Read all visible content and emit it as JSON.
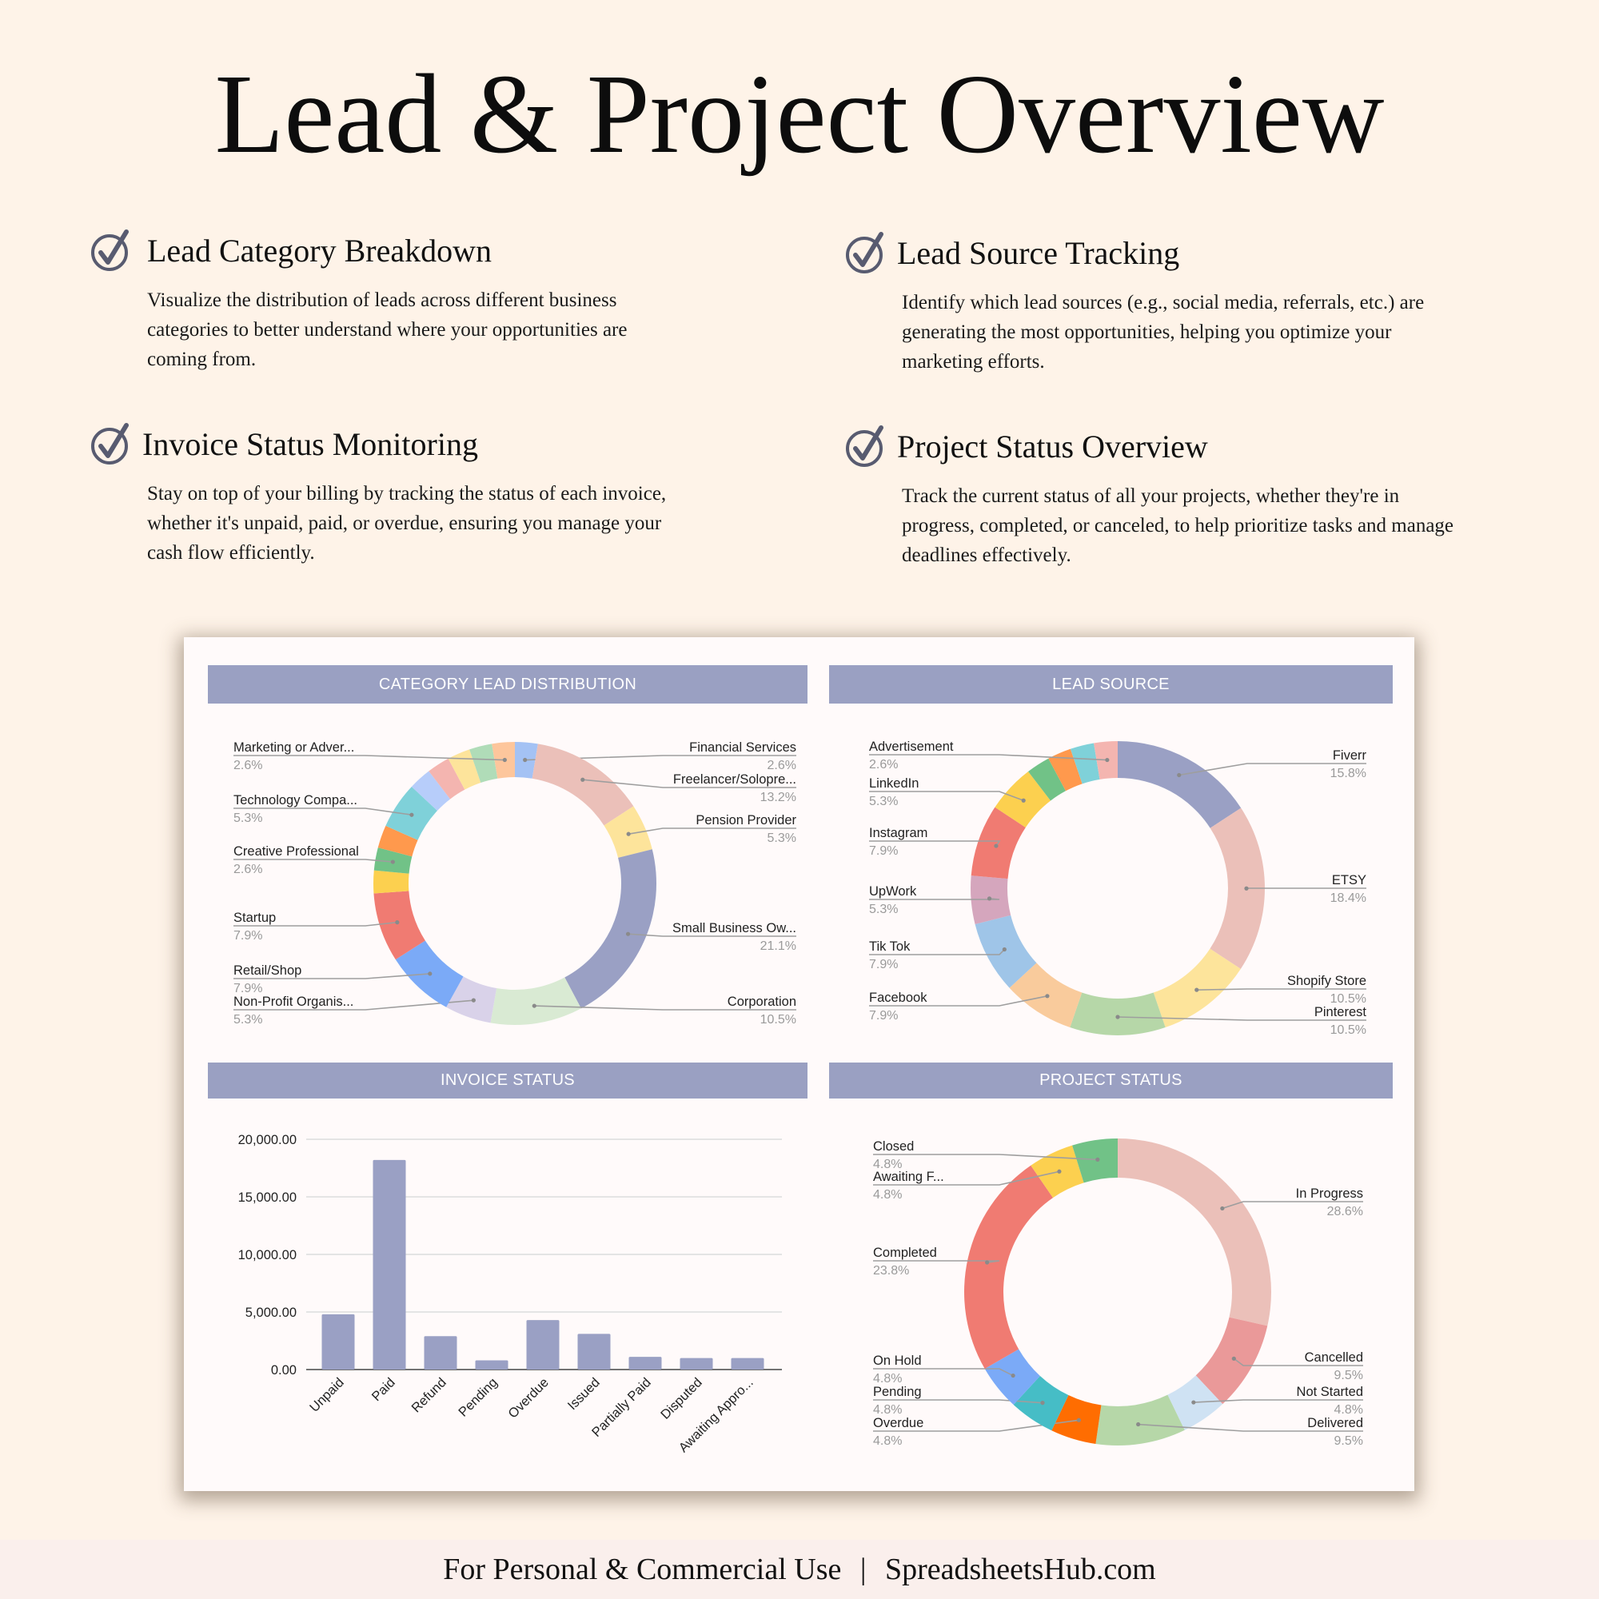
{
  "title": "Lead & Project Overview",
  "features": [
    {
      "heading": "Lead Category Breakdown",
      "icon": "check-circle-icon",
      "lines": [
        "Visualize the distribution of leads across different business",
        "categories to better understand where your opportunities are",
        "coming from."
      ]
    },
    {
      "heading": "Lead Source Tracking",
      "icon": "check-circle-icon",
      "lines": [
        "Identify which lead sources (e.g., social media, referrals, etc.) are",
        "generating the most opportunities, helping you optimize your",
        "marketing efforts."
      ]
    },
    {
      "heading": "Invoice Status Monitoring",
      "icon": "check-circle-icon",
      "lines": [
        "Stay on top of your billing by tracking the status of each invoice,",
        "whether it's unpaid, paid, or overdue, ensuring you manage your",
        "cash flow efficiently."
      ]
    },
    {
      "heading": "Project Status Overview",
      "icon": "check-circle-icon",
      "lines": [
        "Track the current status of all your projects, whether they're in",
        "progress, completed, or canceled, to help prioritize tasks and manage",
        "deadlines effectively."
      ]
    }
  ],
  "colors": {
    "header_bar": "#9aa0c2",
    "bar": "#9aa0c4",
    "icon": "#585b70",
    "background": "#fef3e8"
  },
  "chart_data": [
    {
      "type": "pie",
      "donut": true,
      "title": "CATEGORY LEAD DISTRIBUTION",
      "slices": [
        {
          "name": "Financial Services",
          "percent": 2.6,
          "color": "#a4c2f4"
        },
        {
          "name": "Freelancer/Solopre...",
          "percent": 13.2,
          "color": "#ebc0b9"
        },
        {
          "name": "Pension Provider",
          "percent": 5.3,
          "color": "#fde49b"
        },
        {
          "name": "Small Business Ow...",
          "percent": 21.1,
          "color": "#9aa0c4"
        },
        {
          "name": "Corporation",
          "percent": 10.5,
          "color": "#d9ead3"
        },
        {
          "name": "Non-Profit Organis...",
          "percent": 5.3,
          "color": "#d9d2e9"
        },
        {
          "name": "Retail/Shop",
          "percent": 7.9,
          "color": "#7baaf7"
        },
        {
          "name": "Startup",
          "percent": 7.9,
          "color": "#f07b72"
        },
        {
          "name": "",
          "percent": 2.6,
          "color": "#fcd04f"
        },
        {
          "name": "Creative Professional",
          "percent": 2.6,
          "color": "#71c287"
        },
        {
          "name": "",
          "percent": 2.6,
          "color": "#ff994d"
        },
        {
          "name": "Technology Compa...",
          "percent": 5.3,
          "color": "#7fd1d9"
        },
        {
          "name": "",
          "percent": 2.6,
          "color": "#b7cdfa"
        },
        {
          "name": "",
          "percent": 2.6,
          "color": "#f4b5b0"
        },
        {
          "name": "",
          "percent": 2.6,
          "color": "#fde49b"
        },
        {
          "name": "",
          "percent": 2.6,
          "color": "#b0dcb8"
        },
        {
          "name": "Marketing or Adver...",
          "percent": 2.6,
          "color": "#fdc69c"
        }
      ]
    },
    {
      "type": "pie",
      "donut": true,
      "title": "LEAD SOURCE",
      "slices": [
        {
          "name": "Fiverr",
          "percent": 15.8,
          "color": "#9aa0c4"
        },
        {
          "name": "ETSY",
          "percent": 18.4,
          "color": "#ebc0b9"
        },
        {
          "name": "Shopify Store",
          "percent": 10.5,
          "color": "#fde49b"
        },
        {
          "name": "Pinterest",
          "percent": 10.5,
          "color": "#b6d7a8"
        },
        {
          "name": "Facebook",
          "percent": 7.9,
          "color": "#f9cb9c"
        },
        {
          "name": "Tik Tok",
          "percent": 7.9,
          "color": "#9fc5e8"
        },
        {
          "name": "UpWork",
          "percent": 5.3,
          "color": "#d5a6bd"
        },
        {
          "name": "Instagram",
          "percent": 7.9,
          "color": "#f07b72"
        },
        {
          "name": "LinkedIn",
          "percent": 5.3,
          "color": "#fcd04f"
        },
        {
          "name": "",
          "percent": 2.6,
          "color": "#71c287"
        },
        {
          "name": "",
          "percent": 2.6,
          "color": "#ff994d"
        },
        {
          "name": "",
          "percent": 2.6,
          "color": "#7fd1d9"
        },
        {
          "name": "Advertisement",
          "percent": 2.6,
          "color": "#f4b5b0"
        }
      ]
    },
    {
      "type": "bar",
      "title": "INVOICE STATUS",
      "categories": [
        "Unpaid",
        "Paid",
        "Refund",
        "Pending",
        "Overdue",
        "Issued",
        "Partially Paid",
        "Disputed",
        "Awaiting Appro..."
      ],
      "values": [
        4800,
        18200,
        2900,
        800,
        4300,
        3100,
        1100,
        1000,
        1000
      ],
      "ylim": [
        0,
        20000
      ],
      "yticks": [
        "0.00",
        "5,000.00",
        "10,000.00",
        "15,000.00",
        "20,000.00"
      ],
      "grid": true,
      "xlabel": "",
      "ylabel": ""
    },
    {
      "type": "pie",
      "donut": true,
      "title": "PROJECT STATUS",
      "slices": [
        {
          "name": "In Progress",
          "percent": 28.6,
          "color": "#ebc0b9"
        },
        {
          "name": "Cancelled",
          "percent": 9.5,
          "color": "#ea9999"
        },
        {
          "name": "Not Started",
          "percent": 4.8,
          "color": "#cfe2f3"
        },
        {
          "name": "Delivered",
          "percent": 9.5,
          "color": "#b6d7a8"
        },
        {
          "name": "Overdue",
          "percent": 4.8,
          "color": "#ff6d01"
        },
        {
          "name": "Pending",
          "percent": 4.8,
          "color": "#46bdc6"
        },
        {
          "name": "On Hold",
          "percent": 4.8,
          "color": "#7baaf7"
        },
        {
          "name": "Completed",
          "percent": 23.8,
          "color": "#f07b72"
        },
        {
          "name": "Awaiting F...",
          "percent": 4.8,
          "color": "#fcd04f"
        },
        {
          "name": "Closed",
          "percent": 4.8,
          "color": "#71c287"
        }
      ]
    }
  ],
  "footer": {
    "left": "For Personal & Commercial Use",
    "separator": "|",
    "right": "SpreadsheetsHub.com"
  }
}
